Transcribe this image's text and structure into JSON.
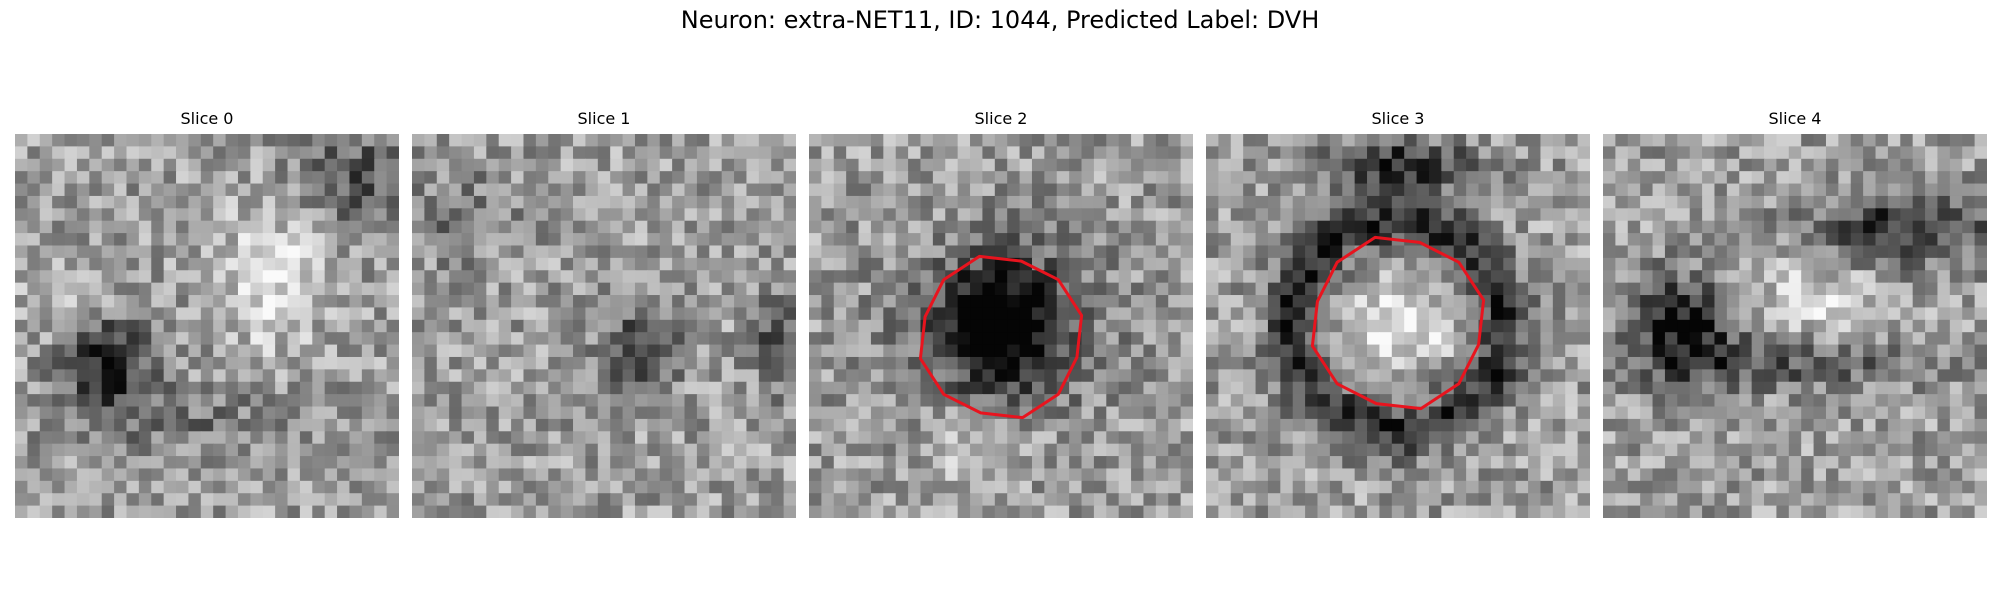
{
  "figure": {
    "title": "Neuron: extra-NET11, ID: 1044, Predicted Label: DVH"
  },
  "colors": {
    "background": "#ffffff",
    "contour": "#e8141e"
  },
  "colormap": "grayscale",
  "slices": [
    {
      "title": "Slice 0",
      "has_contour": false
    },
    {
      "title": "Slice 1",
      "has_contour": false
    },
    {
      "title": "Slice 2",
      "has_contour": true
    },
    {
      "title": "Slice 3",
      "has_contour": true
    },
    {
      "title": "Slice 4",
      "has_contour": false
    }
  ]
}
